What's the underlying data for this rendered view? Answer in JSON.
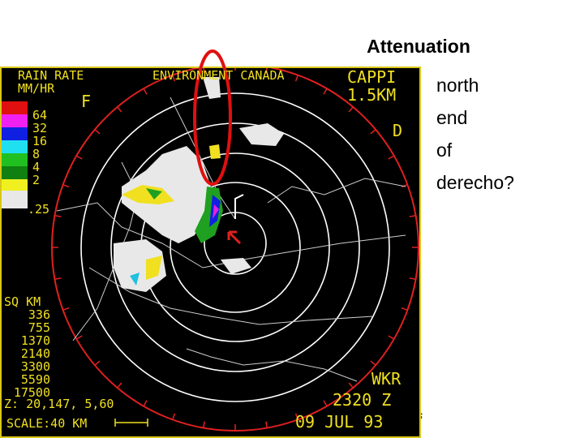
{
  "title": "Attenuation",
  "bullets": [
    "north",
    "end",
    "of",
    "derecho?"
  ],
  "radar": {
    "header_left": [
      "RAIN RATE",
      "MM/HR"
    ],
    "header_center": "ENVIRONMENT CANADA",
    "header_right": [
      "CAPPI",
      "1.5KM"
    ],
    "labels": [
      "F",
      "D"
    ],
    "legend": [
      "64",
      "32",
      "16",
      "8",
      "4",
      "2",
      ".25"
    ],
    "area_title": "SQ KM",
    "areas": [
      "336",
      "755",
      "1370",
      "2140",
      "3300",
      "5590",
      "17500"
    ],
    "z": "Z: 20,147, 5,60",
    "scale": "SCALE:40 KM",
    "station": "WKR",
    "time": "2320 Z",
    "date": "09 JUL 93"
  },
  "footer_fragment": "ts"
}
